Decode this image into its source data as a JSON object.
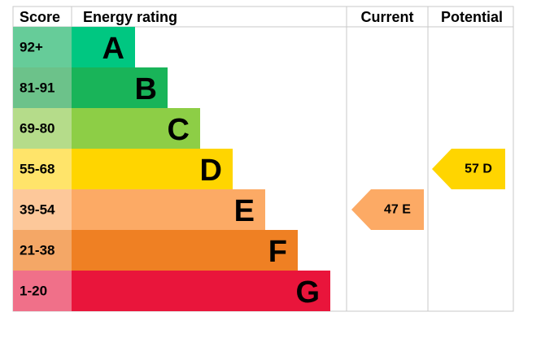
{
  "header": {
    "score": "Score",
    "energy_rating": "Energy rating",
    "current": "Current",
    "potential": "Potential"
  },
  "rows": [
    {
      "score": "92+",
      "rating": "A",
      "color": "#00c781",
      "score_color": "#66cc99"
    },
    {
      "score": "81-91",
      "rating": "B",
      "color": "#19b459",
      "score_color": "#6cc28a"
    },
    {
      "score": "69-80",
      "rating": "C",
      "color": "#8dce46",
      "score_color": "#b5dc8a"
    },
    {
      "score": "55-68",
      "rating": "D",
      "color": "#ffd500",
      "score_color": "#ffe46a"
    },
    {
      "score": "39-54",
      "rating": "E",
      "color": "#fcaa65",
      "score_color": "#fdc89a"
    },
    {
      "score": "21-38",
      "rating": "F",
      "color": "#ef8023",
      "score_color": "#f4a766"
    },
    {
      "score": "1-20",
      "rating": "G",
      "color": "#e9153b",
      "score_color": "#f07089"
    }
  ],
  "current": {
    "label": "47 E",
    "rating": "E"
  },
  "potential": {
    "label": "57 D",
    "rating": "D"
  }
}
